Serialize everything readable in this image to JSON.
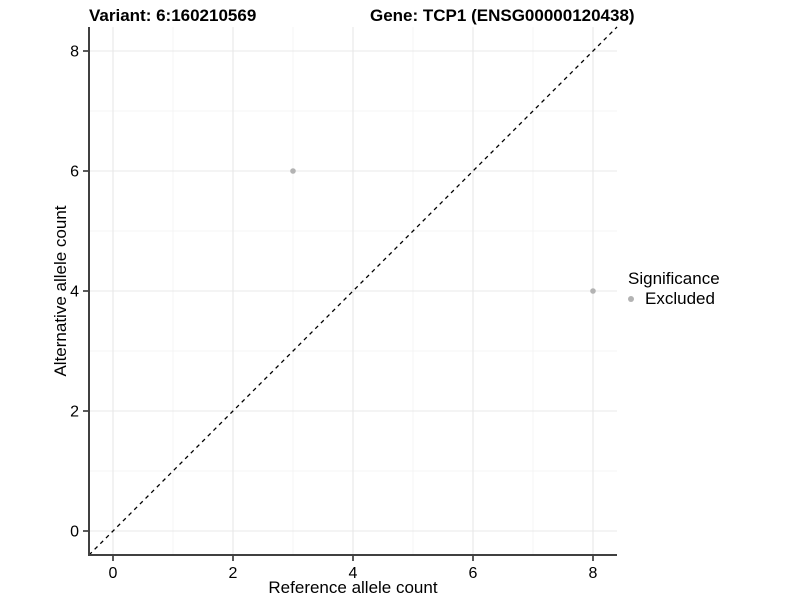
{
  "header": {
    "variant_title": "Variant: 6:160210569",
    "gene_title": "Gene: TCP1 (ENSG00000120438)"
  },
  "chart_data": {
    "type": "scatter",
    "xlabel": "Reference allele count",
    "ylabel": "Alternative allele count",
    "xlim": [
      -0.4,
      8.4
    ],
    "ylim": [
      -0.4,
      8.4
    ],
    "xticks": [
      0,
      2,
      4,
      6,
      8
    ],
    "yticks": [
      0,
      2,
      4,
      6,
      8
    ],
    "xticks_minor": [
      1,
      3,
      5,
      7
    ],
    "yticks_minor": [
      1,
      3,
      5,
      7
    ],
    "grid": "on",
    "identity_line": {
      "equation": "y = x",
      "dashed": true,
      "color": "#000000"
    },
    "series": [
      {
        "name": "Excluded",
        "color": "#b3b3b3",
        "points": [
          {
            "x": 3,
            "y": 6
          },
          {
            "x": 8,
            "y": 4
          }
        ]
      }
    ],
    "legend": {
      "position": "right",
      "title": "Significance",
      "items": [
        {
          "label": "Excluded",
          "color": "#b3b3b3",
          "marker": "circle-icon"
        }
      ]
    },
    "style": {
      "point_radius": 2.8,
      "axis_line_color": "#404040",
      "tick_color": "#333333",
      "tick_label_color": "#000000",
      "grid_major_color": "#e8e8e8",
      "grid_minor_color": "#f4f4f4",
      "background": "#ffffff"
    }
  }
}
